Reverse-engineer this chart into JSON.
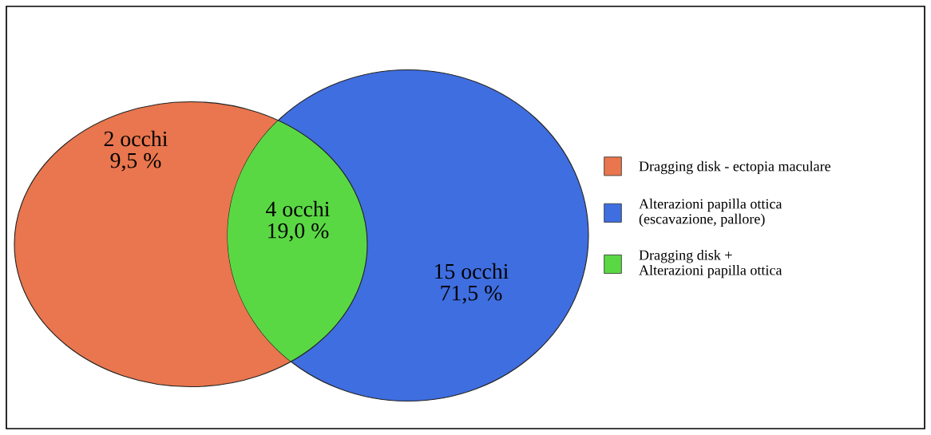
{
  "chart_data": {
    "type": "other",
    "categories": [
      "Dragging disk - ectopia maculare",
      "Alterazioni papilla ottica\n(escavazione, pallore)",
      "Dragging disk +\nAlterazioni papilla ottica"
    ],
    "values": [
      2,
      15,
      4
    ],
    "value_labels": [
      "2 occhi\n9,5 %",
      "15 occhi\n71,5 %",
      "4 occhi\n19,0 %"
    ],
    "colors": [
      "#e9764e",
      "#3f6ee0",
      "#5ad844"
    ]
  }
}
